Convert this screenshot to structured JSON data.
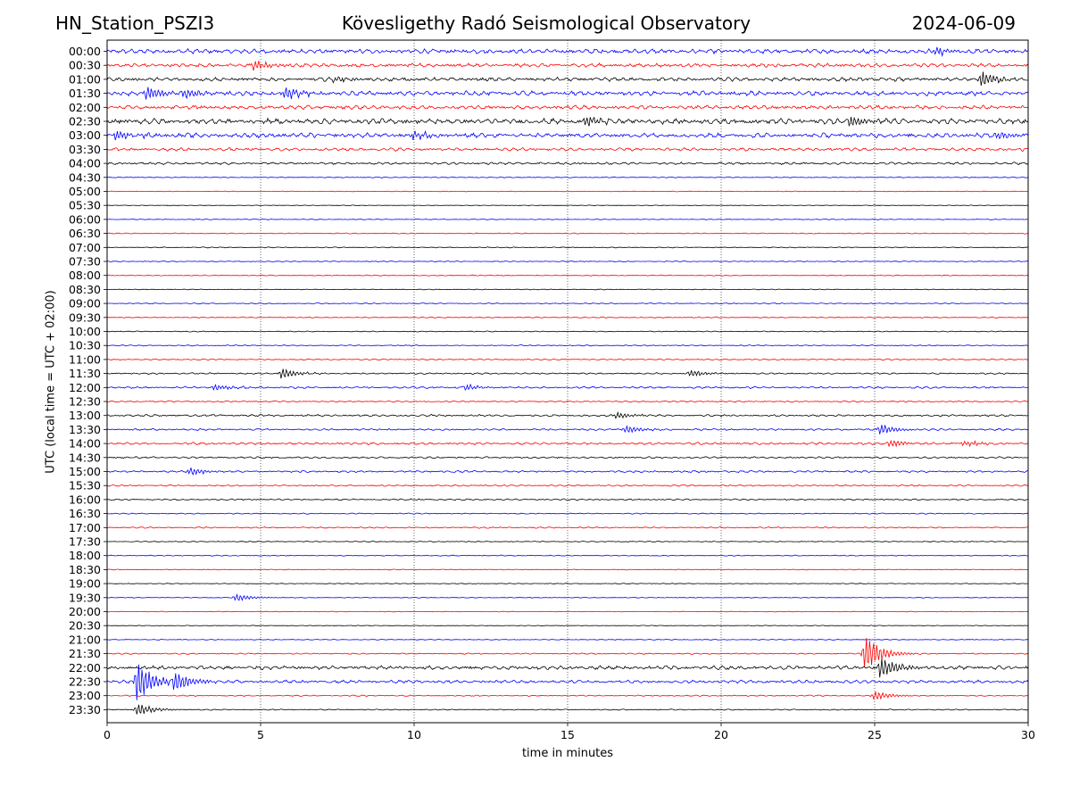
{
  "header": {
    "station": "HN_Station_PSZI3",
    "observatory": "Kövesligethy Radó Seismological Observatory",
    "date": "2024-06-09"
  },
  "chart_data": {
    "type": "line",
    "title": "Kövesligethy Radó Seismological Observatory",
    "xlabel": "time in minutes",
    "ylabel": "UTC (local time = UTC + 02:00)",
    "xlim": [
      0,
      30
    ],
    "x_ticks": [
      "0",
      "5",
      "10",
      "15",
      "20",
      "25",
      "30"
    ],
    "grid_vertical": true,
    "rows": [
      "00:00",
      "00:30",
      "01:00",
      "01:30",
      "02:00",
      "02:30",
      "03:00",
      "03:30",
      "04:00",
      "04:30",
      "05:00",
      "05:30",
      "06:00",
      "06:30",
      "07:00",
      "07:30",
      "08:00",
      "08:30",
      "09:00",
      "09:30",
      "10:00",
      "10:30",
      "11:00",
      "11:30",
      "12:00",
      "12:30",
      "13:00",
      "13:30",
      "14:00",
      "14:30",
      "15:00",
      "15:30",
      "16:00",
      "16:30",
      "17:00",
      "17:30",
      "18:00",
      "18:30",
      "19:00",
      "19:30",
      "20:00",
      "20:30",
      "21:00",
      "21:30",
      "22:00",
      "22:30",
      "23:00",
      "23:30"
    ],
    "row_colors": [
      "#0000ff",
      "#ff0000",
      "#000000"
    ],
    "noise_level": [
      3,
      2.5,
      2.5,
      3,
      2.5,
      3.5,
      3,
      2,
      1.5,
      0.6,
      0.4,
      0.4,
      0.5,
      0.6,
      0.6,
      0.6,
      0.6,
      0.5,
      0.7,
      0.7,
      0.6,
      0.7,
      0.9,
      1,
      1.2,
      0.9,
      1.3,
      1.2,
      1.5,
      1.2,
      1.3,
      1,
      1,
      0.7,
      0.9,
      0.6,
      0.6,
      0.5,
      0.5,
      0.5,
      0.4,
      0.4,
      0.5,
      0.8,
      2.5,
      2,
      0.8,
      0.7
    ],
    "events": [
      {
        "row": 0,
        "minute": 27.0,
        "amplitude": 5
      },
      {
        "row": 1,
        "minute": 4.8,
        "amplitude": 6
      },
      {
        "row": 2,
        "minute": 7.4,
        "amplitude": 4
      },
      {
        "row": 2,
        "minute": 28.5,
        "amplitude": 11
      },
      {
        "row": 3,
        "minute": 1.3,
        "amplitude": 8
      },
      {
        "row": 3,
        "minute": 2.5,
        "amplitude": 7
      },
      {
        "row": 3,
        "minute": 5.8,
        "amplitude": 8
      },
      {
        "row": 5,
        "minute": 15.6,
        "amplitude": 7
      },
      {
        "row": 5,
        "minute": 24.2,
        "amplitude": 7
      },
      {
        "row": 6,
        "minute": 0.3,
        "amplitude": 6
      },
      {
        "row": 6,
        "minute": 10.0,
        "amplitude": 5
      },
      {
        "row": 6,
        "minute": 29.0,
        "amplitude": 5
      },
      {
        "row": 23,
        "minute": 5.7,
        "amplitude": 7
      },
      {
        "row": 23,
        "minute": 19.0,
        "amplitude": 4
      },
      {
        "row": 24,
        "minute": 3.5,
        "amplitude": 4
      },
      {
        "row": 24,
        "minute": 11.7,
        "amplitude": 4
      },
      {
        "row": 26,
        "minute": 16.6,
        "amplitude": 4
      },
      {
        "row": 27,
        "minute": 16.9,
        "amplitude": 5
      },
      {
        "row": 27,
        "minute": 25.2,
        "amplitude": 6
      },
      {
        "row": 28,
        "minute": 25.5,
        "amplitude": 5
      },
      {
        "row": 28,
        "minute": 27.9,
        "amplitude": 4
      },
      {
        "row": 30,
        "minute": 2.7,
        "amplitude": 5
      },
      {
        "row": 39,
        "minute": 4.2,
        "amplitude": 5
      },
      {
        "row": 43,
        "minute": 24.7,
        "amplitude": 25
      },
      {
        "row": 44,
        "minute": 25.2,
        "amplitude": 14
      },
      {
        "row": 45,
        "minute": 1.0,
        "amplitude": 28
      },
      {
        "row": 45,
        "minute": 2.2,
        "amplitude": 15
      },
      {
        "row": 46,
        "minute": 25.0,
        "amplitude": 6
      },
      {
        "row": 47,
        "minute": 1.0,
        "amplitude": 8
      }
    ]
  }
}
